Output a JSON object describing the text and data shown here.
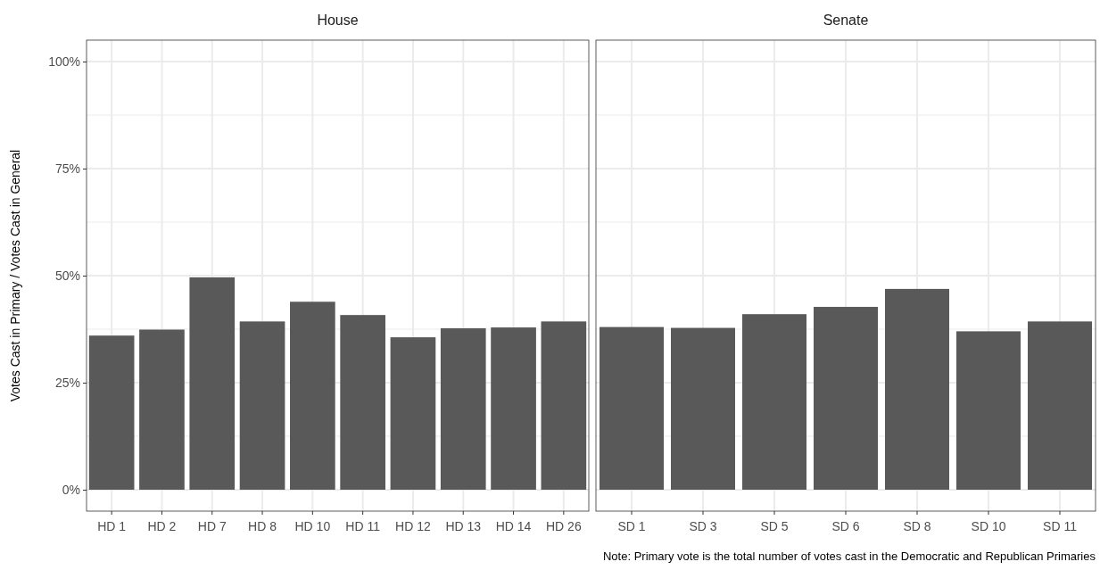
{
  "chart_data": [
    {
      "type": "bar",
      "title": "House",
      "ylabel": "Votes Cast in Primary / Votes Cast in General",
      "categories": [
        "HD 1",
        "HD 2",
        "HD 7",
        "HD 8",
        "HD 10",
        "HD 11",
        "HD 12",
        "HD 13",
        "HD 14",
        "HD 26"
      ],
      "values": [
        36.0,
        37.4,
        49.6,
        39.3,
        43.9,
        40.8,
        35.6,
        37.7,
        37.9,
        39.3
      ],
      "color": "#595959",
      "ylim": [
        -5,
        105
      ],
      "yticks": [
        {
          "value": 0,
          "label": "0%"
        },
        {
          "value": 25,
          "label": "25%"
        },
        {
          "value": 50,
          "label": "50%"
        },
        {
          "value": 75,
          "label": "75%"
        },
        {
          "value": 100,
          "label": "100%"
        }
      ],
      "grid": true
    },
    {
      "type": "bar",
      "title": "Senate",
      "categories": [
        "SD 1",
        "SD 3",
        "SD 5",
        "SD 6",
        "SD 8",
        "SD 10",
        "SD 11"
      ],
      "values": [
        38.0,
        37.8,
        41.0,
        42.7,
        46.9,
        37.0,
        39.3
      ],
      "color": "#595959",
      "ylim": [
        -5,
        105
      ],
      "yticks": [
        0,
        25,
        50,
        75,
        100
      ],
      "grid": true,
      "tick_labels": "x",
      "annotations": [
        "Note: Primary vote is the total number of votes cast in the Democratic and Republican Primaries"
      ]
    }
  ]
}
